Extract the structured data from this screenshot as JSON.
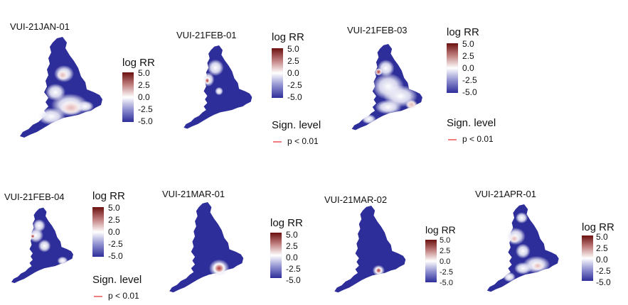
{
  "legend": {
    "title": "log RR",
    "ticks": [
      "5.0",
      "2.5",
      "0.0",
      "-2.5",
      "-5.0"
    ],
    "sign_title": "Sign. level",
    "sign_item": "p < 0.01"
  },
  "colors": {
    "high": "#6b1010",
    "mid": "#ffffff",
    "low": "#2e2e9a",
    "sig_line": "#f08080"
  },
  "panels": [
    {
      "title": "VUI-21JAN-01",
      "log_rr_range": [
        -5.0,
        5.0
      ],
      "shows_sign_legend": false
    },
    {
      "title": "VUI-21FEB-01",
      "log_rr_range": [
        -5.0,
        5.0
      ],
      "shows_sign_legend": true
    },
    {
      "title": "VUI-21FEB-03",
      "log_rr_range": [
        -5.0,
        5.0
      ],
      "shows_sign_legend": true
    },
    {
      "title": "VUI-21FEB-04",
      "log_rr_range": [
        -5.0,
        5.0
      ],
      "shows_sign_legend": true
    },
    {
      "title": "VUI-21MAR-01",
      "log_rr_range": [
        -5.0,
        5.0
      ],
      "shows_sign_legend": false
    },
    {
      "title": "VUI-21MAR-02",
      "log_rr_range": [
        -5.0,
        5.0
      ],
      "shows_sign_legend": false
    },
    {
      "title": "VUI-21APR-01",
      "log_rr_range": [
        -5.0,
        5.0
      ],
      "shows_sign_legend": false
    }
  ]
}
